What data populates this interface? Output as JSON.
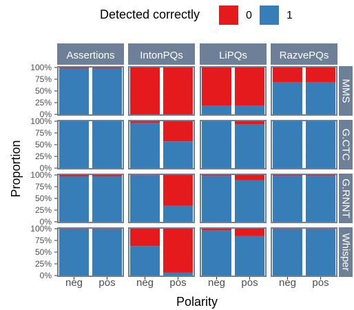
{
  "chart_data": {
    "type": "bar",
    "stacked": true,
    "ylabel": "Proportion",
    "xlabel": "Polarity",
    "legend": {
      "title": "Detected correctly",
      "position": "top",
      "entries": [
        {
          "label": "0",
          "color": "#E41A1C"
        },
        {
          "label": "1",
          "color": "#377EB8"
        }
      ]
    },
    "colors": {
      "0": "#E41A1C",
      "1": "#377EB8",
      "strip": "#6E8098",
      "panel_border": "#6E8098"
    },
    "grid": true,
    "ylim": [
      0,
      1
    ],
    "yticks": [
      "0%",
      "25%",
      "50%",
      "75%",
      "100%"
    ],
    "categories": [
      "neg",
      "pos"
    ],
    "columns": [
      "Assertions",
      "IntonPQs",
      "LiPQs",
      "RazvePQs"
    ],
    "rows": [
      "MMS",
      "G.CTC",
      "G.RNNT",
      "Whisper"
    ],
    "proportion_1": {
      "MMS": {
        "Assertions": [
          0.98,
          0.98
        ],
        "IntonPQs": [
          0.0,
          0.0
        ],
        "LiPQs": [
          0.18,
          0.18
        ],
        "RazvePQs": [
          0.68,
          0.68
        ]
      },
      "G.CTC": {
        "Assertions": [
          1.0,
          1.0
        ],
        "IntonPQs": [
          0.96,
          0.57
        ],
        "LiPQs": [
          1.0,
          0.93
        ],
        "RazvePQs": [
          1.0,
          1.0
        ]
      },
      "G.RNNT": {
        "Assertions": [
          0.97,
          0.97
        ],
        "IntonPQs": [
          0.99,
          0.34
        ],
        "LiPQs": [
          0.98,
          0.89
        ],
        "RazvePQs": [
          0.98,
          0.98
        ]
      },
      "Whisper": {
        "Assertions": [
          0.99,
          0.99
        ],
        "IntonPQs": [
          0.63,
          0.06
        ],
        "LiPQs": [
          0.96,
          0.84
        ],
        "RazvePQs": [
          0.99,
          0.99
        ]
      }
    }
  }
}
